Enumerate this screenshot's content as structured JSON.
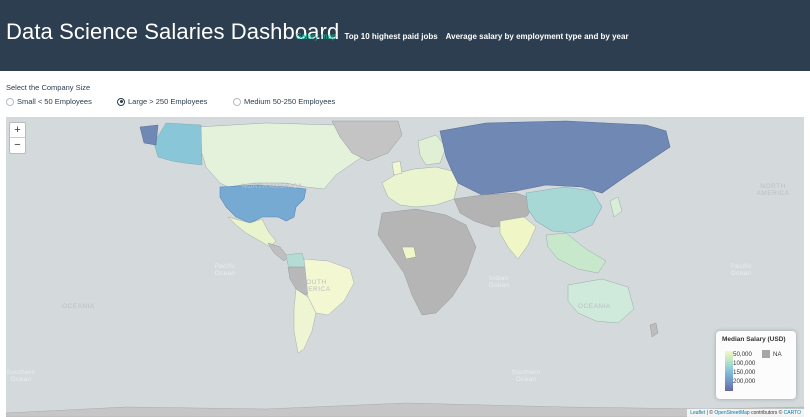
{
  "header": {
    "title": "Data Science Salaries Dashboard",
    "nav": [
      {
        "label": "Salary map",
        "active": true
      },
      {
        "label": "Top 10 highest paid jobs",
        "active": false
      },
      {
        "label": "Average salary by employment type and by year",
        "active": false
      }
    ]
  },
  "filter": {
    "label": "Select the Company Size",
    "options": [
      {
        "label": "Small < 50 Employees",
        "checked": false
      },
      {
        "label": "Large > 250 Employees",
        "checked": true
      },
      {
        "label": "Medium 50-250 Employees",
        "checked": false
      }
    ]
  },
  "map": {
    "zoom_in": "+",
    "zoom_out": "−",
    "oceans": [
      "Pacific Ocean",
      "Atlantic Ocean",
      "Indian Ocean",
      "Pacific Ocean",
      "Southern Ocean",
      "Southern Ocean"
    ],
    "continents": [
      "NORTH AMERICA",
      "NORTH AMERICA",
      "SOUTH AMERICA",
      "OCEANIA",
      "OCEANIA"
    ],
    "legend": {
      "title": "Median Salary (USD)",
      "ticks": [
        "50,000",
        "100,000",
        "150,000",
        "200,000"
      ],
      "na_label": "NA",
      "na_color": "#a6a6a6",
      "low_color": "#f4f7c8",
      "high_color": "#6a64a3"
    },
    "attribution": {
      "leaflet": "Leaflet",
      "sep": " | © ",
      "osm": "OpenStreetMap",
      "mid": " contributors © ",
      "carto": "CARTO"
    }
  },
  "colors": {
    "header_bg": "#2c3e50",
    "accent": "#18bc9c",
    "water": "#d4dadc"
  }
}
